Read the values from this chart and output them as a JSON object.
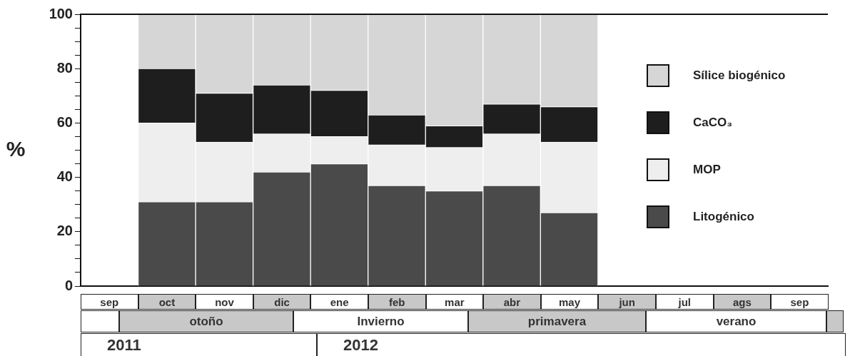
{
  "chart_data": {
    "type": "bar",
    "stacked": true,
    "ylabel": "%",
    "categories": [
      null,
      null,
      null,
      null,
      null,
      null,
      null,
      null,
      null,
      null,
      null,
      null,
      null
    ],
    "series": [
      {
        "name": "Litogénico",
        "color": "#4a4a4a",
        "values": [
          null,
          31,
          31,
          42,
          45,
          37,
          35,
          37,
          27,
          null,
          null,
          null,
          null
        ]
      },
      {
        "name": "MOP",
        "color": "#eeeeee",
        "values": [
          null,
          29,
          22,
          14,
          10,
          15,
          16,
          19,
          26,
          null,
          null,
          null,
          null
        ]
      },
      {
        "name": "CaCO₃",
        "color": "#1e1e1e",
        "values": [
          null,
          20,
          18,
          18,
          17,
          11,
          8,
          11,
          13,
          null,
          null,
          null,
          null
        ]
      },
      {
        "name": "Sílice biogénico",
        "color": "#d6d6d6",
        "values": [
          null,
          20,
          29,
          26,
          28,
          37,
          41,
          33,
          34,
          null,
          null,
          null,
          null
        ]
      }
    ],
    "ylim": [
      0,
      100
    ],
    "yticks": [
      0,
      {
        "value": 5,
        "label": null
      },
      {
        "value": 10,
        "label": null
      },
      {
        "value": 15,
        "label": null
      },
      20,
      {
        "value": 25,
        "label": null
      },
      {
        "value": 30,
        "label": null
      },
      {
        "value": 35,
        "label": null
      },
      40,
      {
        "value": 45,
        "label": null
      },
      {
        "value": 50,
        "label": null
      },
      {
        "value": 55,
        "label": null
      },
      60,
      {
        "value": 65,
        "label": null
      },
      {
        "value": 70,
        "label": null
      },
      {
        "value": 75,
        "label": null
      },
      80,
      {
        "value": 85,
        "label": null
      },
      {
        "value": 90,
        "label": null
      },
      {
        "value": 95,
        "label": null
      },
      100
    ],
    "legend": "right",
    "tick_labels": "y",
    "annotations": [
      "sep",
      "oct",
      "nov",
      "dic",
      "ene",
      "feb",
      "mar",
      "abr",
      "may",
      "jun",
      "jul",
      "ags",
      "sep",
      "otoño",
      "Invierno",
      "primavera",
      "verano",
      "2011",
      "2012"
    ]
  }
}
